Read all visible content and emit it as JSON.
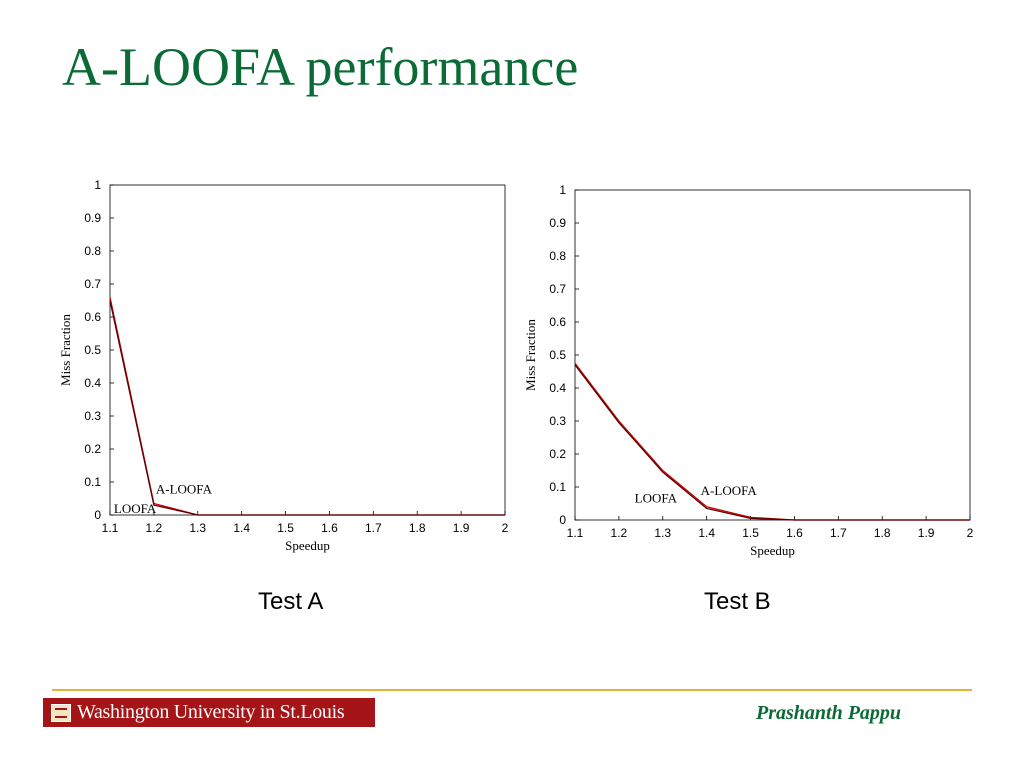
{
  "slide": {
    "title": "A-LOOFA performance",
    "footer_org": "Washington University in St.Louis",
    "footer_author": "Prashanth Pappu"
  },
  "colors": {
    "title": "#0b6b36",
    "footer_rule": "#e8b23a",
    "logo_bg": "#a51417",
    "series_aloofa": "#cc0000",
    "series_loofa": "#5a0000"
  },
  "chart_data": [
    {
      "type": "line",
      "caption": "Test A",
      "xlabel": "Speedup",
      "ylabel": "Miss Fraction",
      "xlim": [
        1.1,
        2
      ],
      "ylim": [
        0,
        1
      ],
      "xticks": [
        "1.1",
        "1.2",
        "1.3",
        "1.4",
        "1.5",
        "1.6",
        "1.7",
        "1.8",
        "1.9",
        "2"
      ],
      "yticks": [
        "0",
        "0.1",
        "0.2",
        "0.3",
        "0.4",
        "0.5",
        "0.6",
        "0.7",
        "0.8",
        "0.9",
        "1"
      ],
      "grid": false,
      "series": [
        {
          "name": "A-LOOFA",
          "x": [
            1.1,
            1.2,
            1.3,
            1.4,
            1.5,
            1.6,
            1.7,
            1.8,
            1.9,
            2.0
          ],
          "y": [
            0.66,
            0.035,
            0,
            0,
            0,
            0,
            0,
            0,
            0,
            0
          ]
        },
        {
          "name": "LOOFA",
          "x": [
            1.1,
            1.2,
            1.3,
            1.4,
            1.5,
            1.6,
            1.7,
            1.8,
            1.9,
            2.0
          ],
          "y": [
            0.65,
            0.03,
            0,
            0,
            0,
            0,
            0,
            0,
            0,
            0
          ]
        }
      ]
    },
    {
      "type": "line",
      "caption": "Test B",
      "xlabel": "Speedup",
      "ylabel": "Miss Fraction",
      "xlim": [
        1.1,
        2
      ],
      "ylim": [
        0,
        1
      ],
      "xticks": [
        "1.1",
        "1.2",
        "1.3",
        "1.4",
        "1.5",
        "1.6",
        "1.7",
        "1.8",
        "1.9",
        "2"
      ],
      "yticks": [
        "0",
        "0.1",
        "0.2",
        "0.3",
        "0.4",
        "0.5",
        "0.6",
        "0.7",
        "0.8",
        "0.9",
        "1"
      ],
      "grid": false,
      "series": [
        {
          "name": "A-LOOFA",
          "x": [
            1.1,
            1.2,
            1.3,
            1.4,
            1.5,
            1.6,
            1.7,
            1.8,
            1.9,
            2.0
          ],
          "y": [
            0.475,
            0.3,
            0.15,
            0.04,
            0.008,
            0,
            0,
            0,
            0,
            0
          ]
        },
        {
          "name": "LOOFA",
          "x": [
            1.1,
            1.2,
            1.3,
            1.4,
            1.5,
            1.6,
            1.7,
            1.8,
            1.9,
            2.0
          ],
          "y": [
            0.47,
            0.295,
            0.145,
            0.035,
            0.005,
            0,
            0,
            0,
            0,
            0
          ]
        }
      ]
    }
  ]
}
